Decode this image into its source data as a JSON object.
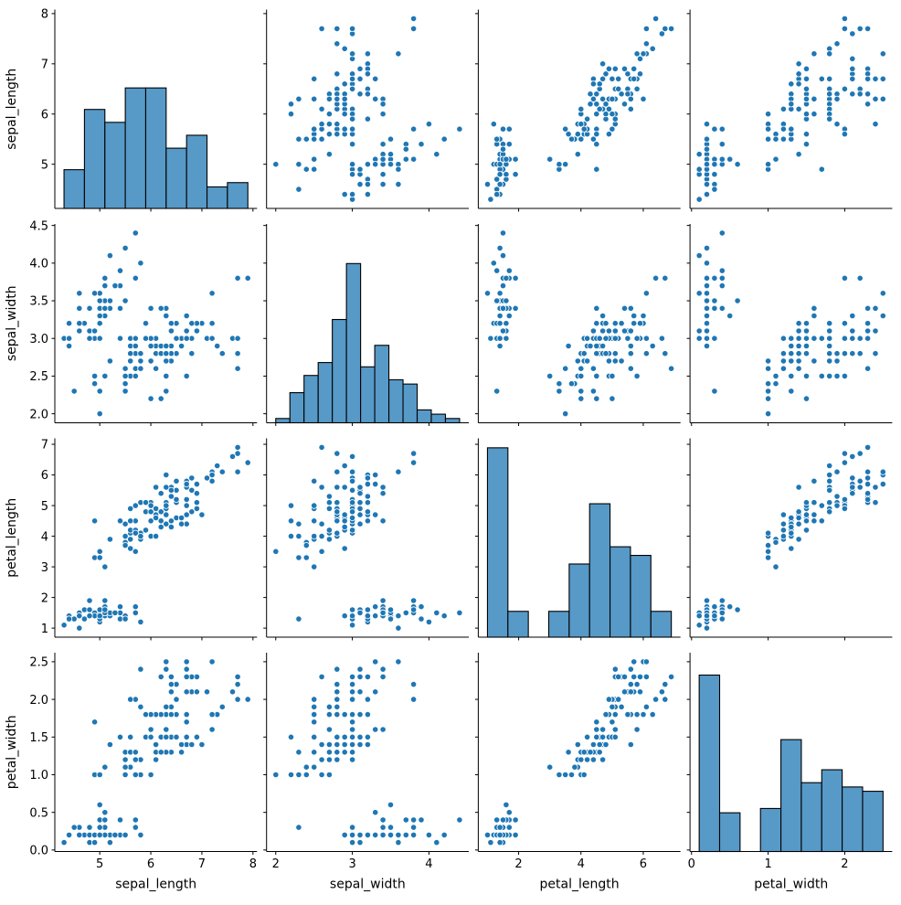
{
  "chart_data": {
    "type": "scatter",
    "subtype": "pairplot_scatter_matrix",
    "title": "",
    "legend": "none",
    "grid": false,
    "n_points": 150,
    "variables": [
      "sepal_length",
      "sepal_width",
      "petal_length",
      "petal_width"
    ],
    "diagonal": "histogram",
    "colors": {
      "marker_fill": "#1f77b4",
      "marker_edge": "#ffffff",
      "bar_fill": "#5799c7",
      "bar_edge": "#000000",
      "spine": "#000000",
      "text": "#000000"
    },
    "axes": {
      "sepal_length": {
        "label": "sepal_length",
        "lim": [
          4.12,
          8.08
        ],
        "xticks": [
          5,
          6,
          7,
          8
        ],
        "xtick_decimals": 0,
        "yticks": [
          5,
          6,
          7,
          8
        ],
        "ytick_decimals": 0,
        "bins": 9
      },
      "sepal_width": {
        "label": "sepal_width",
        "lim": [
          1.88,
          4.52
        ],
        "xticks": [
          2,
          3,
          4
        ],
        "xtick_decimals": 0,
        "yticks": [
          2.0,
          2.5,
          3.0,
          3.5,
          4.0,
          4.5
        ],
        "ytick_decimals": 1,
        "bins": 13
      },
      "petal_length": {
        "label": "petal_length",
        "lim": [
          0.705,
          7.195
        ],
        "xticks": [
          2,
          4,
          6
        ],
        "xtick_decimals": 0,
        "yticks": [
          1,
          2,
          3,
          4,
          5,
          6,
          7
        ],
        "ytick_decimals": 0,
        "bins": 9
      },
      "petal_width": {
        "label": "petal_width",
        "lim": [
          -0.02,
          2.62
        ],
        "xticks": [
          0,
          1,
          2
        ],
        "xtick_decimals": 0,
        "yticks": [
          0.0,
          0.5,
          1.0,
          1.5,
          2.0,
          2.5
        ],
        "ytick_decimals": 1,
        "bins": 9
      }
    },
    "diag_histogram_counts": {
      "sepal_length": [
        9,
        23,
        20,
        28,
        28,
        14,
        17,
        5,
        6
      ],
      "sepal_width": [
        1,
        7,
        11,
        14,
        24,
        37,
        13,
        18,
        10,
        9,
        3,
        2,
        1
      ],
      "petal_length": [
        44,
        6,
        0,
        6,
        17,
        31,
        21,
        19,
        6
      ],
      "petal_width": [
        41,
        9,
        0,
        10,
        26,
        16,
        19,
        15,
        14
      ]
    },
    "data": {
      "sepal_length": [
        5.1,
        4.9,
        4.7,
        4.6,
        5.0,
        5.4,
        4.6,
        5.0,
        4.4,
        4.9,
        5.4,
        4.8,
        4.8,
        4.3,
        5.8,
        5.7,
        5.4,
        5.1,
        5.7,
        5.1,
        5.4,
        5.1,
        4.6,
        5.1,
        4.8,
        5.0,
        5.0,
        5.2,
        5.2,
        4.7,
        4.8,
        5.4,
        5.2,
        5.5,
        4.9,
        5.0,
        5.5,
        4.9,
        4.4,
        5.1,
        5.0,
        4.5,
        4.4,
        5.0,
        5.1,
        4.8,
        5.1,
        4.6,
        5.3,
        5.0,
        7.0,
        6.4,
        6.9,
        5.5,
        6.5,
        5.7,
        6.3,
        4.9,
        6.6,
        5.2,
        5.0,
        5.9,
        6.0,
        6.1,
        5.6,
        6.7,
        5.6,
        5.8,
        6.2,
        5.6,
        5.9,
        6.1,
        6.3,
        6.1,
        6.4,
        6.6,
        6.8,
        6.7,
        6.0,
        5.7,
        5.5,
        5.5,
        5.8,
        6.0,
        5.4,
        6.0,
        6.7,
        6.3,
        5.6,
        5.5,
        5.5,
        6.1,
        5.8,
        5.0,
        5.6,
        5.7,
        5.7,
        6.2,
        5.1,
        5.7,
        6.3,
        5.8,
        7.1,
        6.3,
        6.5,
        7.6,
        4.9,
        7.3,
        6.7,
        7.2,
        6.5,
        6.4,
        6.8,
        5.7,
        5.8,
        6.4,
        6.5,
        7.7,
        7.7,
        6.0,
        6.9,
        5.6,
        7.7,
        6.3,
        6.7,
        7.2,
        6.2,
        6.1,
        6.4,
        7.2,
        7.4,
        7.9,
        6.4,
        6.3,
        6.1,
        7.7,
        6.3,
        6.4,
        6.0,
        6.9,
        6.7,
        6.9,
        5.8,
        6.8,
        6.7,
        6.7,
        6.3,
        6.5,
        6.2,
        5.9
      ],
      "sepal_width": [
        3.5,
        3.0,
        3.2,
        3.1,
        3.6,
        3.9,
        3.4,
        3.4,
        2.9,
        3.1,
        3.7,
        3.4,
        3.0,
        3.0,
        4.0,
        4.4,
        3.9,
        3.5,
        3.8,
        3.8,
        3.4,
        3.7,
        3.6,
        3.3,
        3.4,
        3.0,
        3.4,
        3.5,
        3.4,
        3.2,
        3.1,
        3.4,
        4.1,
        4.2,
        3.1,
        3.2,
        3.5,
        3.6,
        3.0,
        3.4,
        3.5,
        2.3,
        3.2,
        3.5,
        3.8,
        3.0,
        3.8,
        3.2,
        3.7,
        3.3,
        3.2,
        3.2,
        3.1,
        2.3,
        2.8,
        2.8,
        3.3,
        2.4,
        2.9,
        2.7,
        2.0,
        3.0,
        2.2,
        2.9,
        2.9,
        3.1,
        3.0,
        2.7,
        2.2,
        2.5,
        3.2,
        2.8,
        2.5,
        2.8,
        2.9,
        3.0,
        2.8,
        3.0,
        2.9,
        2.6,
        2.4,
        2.4,
        2.7,
        2.7,
        3.0,
        3.4,
        3.1,
        2.3,
        3.0,
        2.5,
        2.6,
        3.0,
        2.6,
        2.3,
        2.7,
        3.0,
        2.9,
        2.9,
        2.5,
        2.8,
        3.3,
        2.7,
        3.0,
        2.9,
        3.0,
        3.0,
        2.5,
        2.9,
        2.5,
        3.6,
        3.2,
        2.7,
        3.0,
        2.5,
        2.8,
        3.2,
        3.0,
        3.8,
        2.6,
        2.2,
        3.2,
        2.8,
        2.8,
        2.7,
        3.3,
        3.2,
        2.8,
        3.0,
        2.8,
        3.0,
        2.8,
        3.8,
        2.8,
        2.8,
        2.6,
        3.0,
        3.4,
        3.1,
        3.0,
        3.1,
        3.1,
        3.1,
        2.7,
        3.2,
        3.3,
        3.0,
        2.5,
        3.0,
        3.4,
        3.0
      ],
      "petal_length": [
        1.4,
        1.4,
        1.3,
        1.5,
        1.4,
        1.7,
        1.4,
        1.5,
        1.4,
        1.5,
        1.5,
        1.6,
        1.4,
        1.1,
        1.2,
        1.5,
        1.3,
        1.4,
        1.7,
        1.5,
        1.7,
        1.5,
        1.0,
        1.7,
        1.9,
        1.6,
        1.6,
        1.5,
        1.4,
        1.6,
        1.6,
        1.5,
        1.5,
        1.4,
        1.5,
        1.2,
        1.3,
        1.4,
        1.3,
        1.5,
        1.3,
        1.3,
        1.3,
        1.6,
        1.9,
        1.4,
        1.6,
        1.4,
        1.5,
        1.4,
        4.7,
        4.5,
        4.9,
        4.0,
        4.6,
        4.5,
        4.7,
        3.3,
        4.6,
        3.9,
        3.5,
        4.2,
        4.0,
        4.7,
        3.6,
        4.4,
        4.5,
        4.1,
        4.5,
        3.9,
        4.8,
        4.0,
        4.9,
        4.7,
        4.3,
        4.4,
        4.8,
        5.0,
        4.5,
        3.5,
        3.8,
        3.7,
        3.9,
        5.1,
        4.5,
        4.5,
        4.7,
        4.4,
        4.1,
        4.0,
        4.4,
        4.6,
        4.0,
        3.3,
        4.2,
        4.2,
        4.2,
        4.3,
        3.0,
        4.1,
        6.0,
        5.1,
        5.9,
        5.6,
        5.8,
        6.6,
        4.5,
        6.3,
        5.8,
        6.1,
        5.1,
        5.3,
        5.5,
        5.0,
        5.1,
        5.3,
        5.5,
        6.7,
        6.9,
        5.0,
        5.7,
        4.9,
        6.7,
        4.9,
        5.7,
        6.0,
        4.8,
        4.9,
        5.6,
        5.8,
        6.1,
        6.4,
        5.6,
        5.1,
        5.6,
        6.1,
        5.6,
        5.5,
        4.8,
        5.4,
        5.6,
        5.1,
        5.1,
        5.9,
        5.7,
        5.2,
        5.0,
        5.2,
        5.4,
        5.1
      ],
      "petal_width": [
        0.2,
        0.2,
        0.2,
        0.2,
        0.2,
        0.4,
        0.3,
        0.2,
        0.2,
        0.1,
        0.2,
        0.2,
        0.1,
        0.1,
        0.2,
        0.4,
        0.4,
        0.3,
        0.3,
        0.3,
        0.2,
        0.4,
        0.2,
        0.5,
        0.2,
        0.2,
        0.4,
        0.2,
        0.2,
        0.2,
        0.2,
        0.4,
        0.1,
        0.2,
        0.2,
        0.2,
        0.2,
        0.1,
        0.2,
        0.2,
        0.3,
        0.3,
        0.2,
        0.6,
        0.4,
        0.3,
        0.2,
        0.2,
        0.2,
        0.2,
        1.4,
        1.5,
        1.5,
        1.3,
        1.5,
        1.3,
        1.6,
        1.0,
        1.3,
        1.4,
        1.0,
        1.5,
        1.0,
        1.4,
        1.3,
        1.4,
        1.5,
        1.0,
        1.5,
        1.1,
        1.8,
        1.3,
        1.5,
        1.2,
        1.3,
        1.4,
        1.4,
        1.7,
        1.5,
        1.0,
        1.1,
        1.0,
        1.2,
        1.6,
        1.5,
        1.6,
        1.5,
        1.3,
        1.3,
        1.3,
        1.2,
        1.4,
        1.2,
        1.0,
        1.3,
        1.2,
        1.3,
        1.3,
        1.1,
        1.3,
        2.5,
        1.9,
        2.1,
        1.8,
        2.2,
        2.1,
        1.7,
        1.8,
        1.8,
        2.5,
        2.0,
        1.9,
        2.1,
        2.0,
        2.4,
        2.3,
        1.8,
        2.2,
        2.3,
        1.5,
        2.3,
        2.0,
        2.0,
        1.8,
        2.1,
        1.8,
        1.8,
        1.8,
        2.1,
        1.6,
        1.9,
        2.0,
        2.2,
        1.5,
        1.4,
        2.3,
        2.4,
        1.8,
        1.8,
        2.1,
        2.4,
        2.3,
        1.9,
        2.3,
        2.5,
        2.3,
        1.9,
        2.0,
        2.3,
        1.8
      ]
    }
  }
}
